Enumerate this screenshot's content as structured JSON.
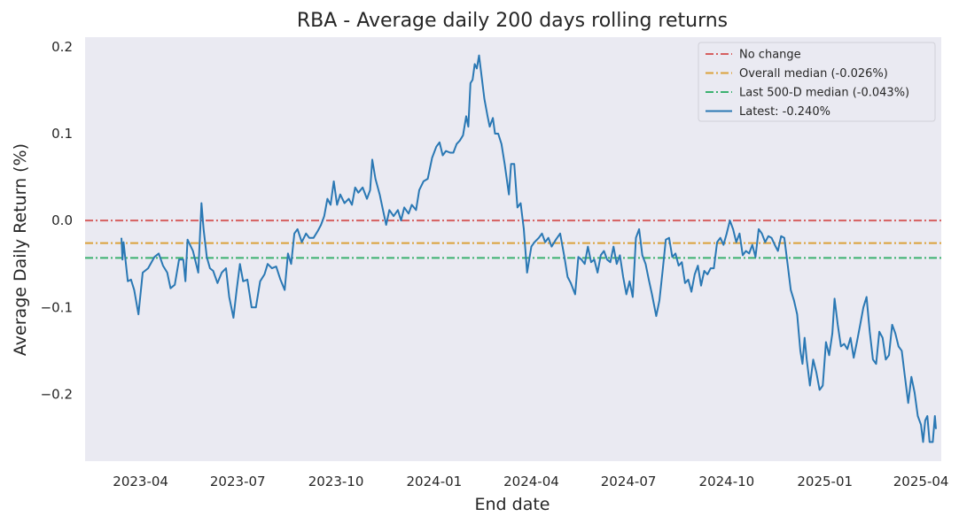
{
  "chart_data": {
    "type": "line",
    "title": "RBA - Average daily 200 days rolling returns",
    "xlabel": "End date",
    "ylabel": "Average Daily Return (%)",
    "xlim": [
      "2023-02-08",
      "2025-04-20"
    ],
    "ylim": [
      -0.277,
      0.211
    ],
    "grid": false,
    "legend_position": "top-right",
    "x_ticks": [
      "2023-04",
      "2023-07",
      "2023-10",
      "2024-01",
      "2024-04",
      "2024-07",
      "2024-10",
      "2025-01",
      "2025-04"
    ],
    "y_ticks": [
      0.2,
      0.1,
      0.0,
      -0.1,
      -0.2
    ],
    "y_tick_labels": [
      "0.2",
      "0.1",
      "0.0",
      "−0.1",
      "−0.2"
    ],
    "reference_lines": [
      {
        "name": "No change",
        "y": 0.0,
        "color": "#d65f5f",
        "style": "dashdot"
      },
      {
        "name": "Overall median (-0.026%)",
        "y": -0.026,
        "color": "#dba13a",
        "style": "dashdot"
      },
      {
        "name": "Last 500-D median (-0.043%)",
        "y": -0.043,
        "color": "#3bb16f",
        "style": "dashdot"
      }
    ],
    "series": [
      {
        "name": "Latest: -0.240%",
        "color": "#2a78b4",
        "points": [
          [
            "2023-03-14",
            -0.02
          ],
          [
            "2023-03-15",
            -0.045
          ],
          [
            "2023-03-16",
            -0.025
          ],
          [
            "2023-03-20",
            -0.07
          ],
          [
            "2023-03-23",
            -0.068
          ],
          [
            "2023-03-26",
            -0.08
          ],
          [
            "2023-03-30",
            -0.108
          ],
          [
            "2023-04-03",
            -0.06
          ],
          [
            "2023-04-08",
            -0.055
          ],
          [
            "2023-04-14",
            -0.042
          ],
          [
            "2023-04-18",
            -0.038
          ],
          [
            "2023-04-22",
            -0.052
          ],
          [
            "2023-04-26",
            -0.06
          ],
          [
            "2023-04-29",
            -0.078
          ],
          [
            "2023-05-03",
            -0.074
          ],
          [
            "2023-05-07",
            -0.045
          ],
          [
            "2023-05-11",
            -0.045
          ],
          [
            "2023-05-13",
            -0.07
          ],
          [
            "2023-05-15",
            -0.022
          ],
          [
            "2023-05-20",
            -0.035
          ],
          [
            "2023-05-25",
            -0.06
          ],
          [
            "2023-05-28",
            0.02
          ],
          [
            "2023-05-30",
            -0.01
          ],
          [
            "2023-06-02",
            -0.042
          ],
          [
            "2023-06-05",
            -0.055
          ],
          [
            "2023-06-08",
            -0.058
          ],
          [
            "2023-06-12",
            -0.072
          ],
          [
            "2023-06-16",
            -0.06
          ],
          [
            "2023-06-20",
            -0.055
          ],
          [
            "2023-06-23",
            -0.088
          ],
          [
            "2023-06-27",
            -0.112
          ],
          [
            "2023-06-30",
            -0.08
          ],
          [
            "2023-07-03",
            -0.05
          ],
          [
            "2023-07-06",
            -0.07
          ],
          [
            "2023-07-10",
            -0.068
          ],
          [
            "2023-07-14",
            -0.1
          ],
          [
            "2023-07-18",
            -0.1
          ],
          [
            "2023-07-22",
            -0.07
          ],
          [
            "2023-07-26",
            -0.062
          ],
          [
            "2023-07-29",
            -0.05
          ],
          [
            "2023-08-02",
            -0.055
          ],
          [
            "2023-08-06",
            -0.053
          ],
          [
            "2023-08-10",
            -0.068
          ],
          [
            "2023-08-14",
            -0.08
          ],
          [
            "2023-08-17",
            -0.038
          ],
          [
            "2023-08-20",
            -0.05
          ],
          [
            "2023-08-23",
            -0.015
          ],
          [
            "2023-08-26",
            -0.01
          ],
          [
            "2023-08-30",
            -0.025
          ],
          [
            "2023-09-03",
            -0.015
          ],
          [
            "2023-09-06",
            -0.02
          ],
          [
            "2023-09-10",
            -0.02
          ],
          [
            "2023-09-14",
            -0.012
          ],
          [
            "2023-09-17",
            -0.005
          ],
          [
            "2023-09-20",
            0.005
          ],
          [
            "2023-09-23",
            0.025
          ],
          [
            "2023-09-26",
            0.018
          ],
          [
            "2023-09-29",
            0.045
          ],
          [
            "2023-10-02",
            0.018
          ],
          [
            "2023-10-05",
            0.03
          ],
          [
            "2023-10-09",
            0.02
          ],
          [
            "2023-10-13",
            0.025
          ],
          [
            "2023-10-16",
            0.018
          ],
          [
            "2023-10-19",
            0.038
          ],
          [
            "2023-10-22",
            0.032
          ],
          [
            "2023-10-26",
            0.038
          ],
          [
            "2023-10-30",
            0.025
          ],
          [
            "2023-11-02",
            0.035
          ],
          [
            "2023-11-04",
            0.07
          ],
          [
            "2023-11-07",
            0.048
          ],
          [
            "2023-11-11",
            0.03
          ],
          [
            "2023-11-14",
            0.012
          ],
          [
            "2023-11-17",
            -0.005
          ],
          [
            "2023-11-20",
            0.012
          ],
          [
            "2023-11-24",
            0.005
          ],
          [
            "2023-11-28",
            0.012
          ],
          [
            "2023-12-01",
            0.0
          ],
          [
            "2023-12-04",
            0.015
          ],
          [
            "2023-12-08",
            0.008
          ],
          [
            "2023-12-11",
            0.018
          ],
          [
            "2023-12-15",
            0.012
          ],
          [
            "2023-12-18",
            0.035
          ],
          [
            "2023-12-22",
            0.045
          ],
          [
            "2023-12-26",
            0.048
          ],
          [
            "2023-12-30",
            0.072
          ],
          [
            "2024-01-03",
            0.085
          ],
          [
            "2024-01-06",
            0.09
          ],
          [
            "2024-01-09",
            0.075
          ],
          [
            "2024-01-12",
            0.08
          ],
          [
            "2024-01-16",
            0.078
          ],
          [
            "2024-01-19",
            0.078
          ],
          [
            "2024-01-22",
            0.088
          ],
          [
            "2024-01-25",
            0.092
          ],
          [
            "2024-01-28",
            0.098
          ],
          [
            "2024-01-31",
            0.12
          ],
          [
            "2024-02-02",
            0.108
          ],
          [
            "2024-02-04",
            0.158
          ],
          [
            "2024-02-06",
            0.162
          ],
          [
            "2024-02-08",
            0.18
          ],
          [
            "2024-02-10",
            0.175
          ],
          [
            "2024-02-12",
            0.19
          ],
          [
            "2024-02-15",
            0.16
          ],
          [
            "2024-02-17",
            0.14
          ],
          [
            "2024-02-20",
            0.12
          ],
          [
            "2024-02-22",
            0.108
          ],
          [
            "2024-02-25",
            0.118
          ],
          [
            "2024-02-27",
            0.1
          ],
          [
            "2024-03-01",
            0.1
          ],
          [
            "2024-03-04",
            0.088
          ],
          [
            "2024-03-07",
            0.065
          ],
          [
            "2024-03-11",
            0.03
          ],
          [
            "2024-03-13",
            0.065
          ],
          [
            "2024-03-16",
            0.065
          ],
          [
            "2024-03-19",
            0.015
          ],
          [
            "2024-03-22",
            0.02
          ],
          [
            "2024-03-25",
            -0.01
          ],
          [
            "2024-03-28",
            -0.06
          ],
          [
            "2024-04-01",
            -0.03
          ],
          [
            "2024-04-04",
            -0.025
          ],
          [
            "2024-04-08",
            -0.02
          ],
          [
            "2024-04-11",
            -0.015
          ],
          [
            "2024-04-14",
            -0.025
          ],
          [
            "2024-04-17",
            -0.02
          ],
          [
            "2024-04-20",
            -0.03
          ],
          [
            "2024-04-24",
            -0.022
          ],
          [
            "2024-04-28",
            -0.015
          ],
          [
            "2024-05-02",
            -0.042
          ],
          [
            "2024-05-05",
            -0.065
          ],
          [
            "2024-05-08",
            -0.072
          ],
          [
            "2024-05-12",
            -0.085
          ],
          [
            "2024-05-15",
            -0.042
          ],
          [
            "2024-05-18",
            -0.045
          ],
          [
            "2024-05-21",
            -0.05
          ],
          [
            "2024-05-24",
            -0.03
          ],
          [
            "2024-05-27",
            -0.048
          ],
          [
            "2024-05-30",
            -0.045
          ],
          [
            "2024-06-02",
            -0.06
          ],
          [
            "2024-06-05",
            -0.04
          ],
          [
            "2024-06-08",
            -0.035
          ],
          [
            "2024-06-11",
            -0.045
          ],
          [
            "2024-06-14",
            -0.048
          ],
          [
            "2024-06-17",
            -0.03
          ],
          [
            "2024-06-20",
            -0.05
          ],
          [
            "2024-06-23",
            -0.04
          ],
          [
            "2024-06-26",
            -0.065
          ],
          [
            "2024-06-29",
            -0.085
          ],
          [
            "2024-07-02",
            -0.07
          ],
          [
            "2024-07-05",
            -0.088
          ],
          [
            "2024-07-08",
            -0.02
          ],
          [
            "2024-07-11",
            -0.01
          ],
          [
            "2024-07-14",
            -0.04
          ],
          [
            "2024-07-17",
            -0.05
          ],
          [
            "2024-07-20",
            -0.068
          ],
          [
            "2024-07-23",
            -0.085
          ],
          [
            "2024-07-27",
            -0.11
          ],
          [
            "2024-07-30",
            -0.092
          ],
          [
            "2024-08-02",
            -0.058
          ],
          [
            "2024-08-05",
            -0.022
          ],
          [
            "2024-08-08",
            -0.02
          ],
          [
            "2024-08-11",
            -0.042
          ],
          [
            "2024-08-14",
            -0.038
          ],
          [
            "2024-08-17",
            -0.052
          ],
          [
            "2024-08-20",
            -0.048
          ],
          [
            "2024-08-23",
            -0.072
          ],
          [
            "2024-08-26",
            -0.068
          ],
          [
            "2024-08-29",
            -0.082
          ],
          [
            "2024-09-01",
            -0.062
          ],
          [
            "2024-09-04",
            -0.052
          ],
          [
            "2024-09-07",
            -0.075
          ],
          [
            "2024-09-10",
            -0.058
          ],
          [
            "2024-09-13",
            -0.062
          ],
          [
            "2024-09-16",
            -0.055
          ],
          [
            "2024-09-19",
            -0.055
          ],
          [
            "2024-09-22",
            -0.025
          ],
          [
            "2024-09-25",
            -0.02
          ],
          [
            "2024-09-28",
            -0.028
          ],
          [
            "2024-10-01",
            -0.015
          ],
          [
            "2024-10-04",
            0.0
          ],
          [
            "2024-10-07",
            -0.01
          ],
          [
            "2024-10-10",
            -0.025
          ],
          [
            "2024-10-13",
            -0.015
          ],
          [
            "2024-10-16",
            -0.04
          ],
          [
            "2024-10-19",
            -0.035
          ],
          [
            "2024-10-22",
            -0.038
          ],
          [
            "2024-10-25",
            -0.028
          ],
          [
            "2024-10-28",
            -0.042
          ],
          [
            "2024-10-31",
            -0.01
          ],
          [
            "2024-11-03",
            -0.015
          ],
          [
            "2024-11-06",
            -0.025
          ],
          [
            "2024-11-09",
            -0.018
          ],
          [
            "2024-11-12",
            -0.02
          ],
          [
            "2024-11-15",
            -0.028
          ],
          [
            "2024-11-18",
            -0.035
          ],
          [
            "2024-11-21",
            -0.018
          ],
          [
            "2024-11-24",
            -0.02
          ],
          [
            "2024-11-27",
            -0.05
          ],
          [
            "2024-11-30",
            -0.08
          ],
          [
            "2024-12-03",
            -0.092
          ],
          [
            "2024-12-06",
            -0.108
          ],
          [
            "2024-12-09",
            -0.15
          ],
          [
            "2024-12-11",
            -0.165
          ],
          [
            "2024-12-13",
            -0.135
          ],
          [
            "2024-12-15",
            -0.16
          ],
          [
            "2024-12-18",
            -0.19
          ],
          [
            "2024-12-21",
            -0.16
          ],
          [
            "2024-12-24",
            -0.175
          ],
          [
            "2024-12-27",
            -0.195
          ],
          [
            "2024-12-30",
            -0.19
          ],
          [
            "2025-01-02",
            -0.14
          ],
          [
            "2025-01-05",
            -0.155
          ],
          [
            "2025-01-08",
            -0.13
          ],
          [
            "2025-01-10",
            -0.09
          ],
          [
            "2025-01-13",
            -0.12
          ],
          [
            "2025-01-16",
            -0.145
          ],
          [
            "2025-01-19",
            -0.142
          ],
          [
            "2025-01-22",
            -0.148
          ],
          [
            "2025-01-25",
            -0.135
          ],
          [
            "2025-01-28",
            -0.158
          ],
          [
            "2025-01-31",
            -0.14
          ],
          [
            "2025-02-03",
            -0.12
          ],
          [
            "2025-02-06",
            -0.1
          ],
          [
            "2025-02-09",
            -0.088
          ],
          [
            "2025-02-12",
            -0.128
          ],
          [
            "2025-02-15",
            -0.16
          ],
          [
            "2025-02-18",
            -0.165
          ],
          [
            "2025-02-21",
            -0.128
          ],
          [
            "2025-02-24",
            -0.135
          ],
          [
            "2025-02-27",
            -0.16
          ],
          [
            "2025-03-02",
            -0.155
          ],
          [
            "2025-03-05",
            -0.12
          ],
          [
            "2025-03-08",
            -0.13
          ],
          [
            "2025-03-11",
            -0.145
          ],
          [
            "2025-03-14",
            -0.15
          ],
          [
            "2025-03-17",
            -0.18
          ],
          [
            "2025-03-20",
            -0.21
          ],
          [
            "2025-03-23",
            -0.18
          ],
          [
            "2025-03-26",
            -0.198
          ],
          [
            "2025-03-29",
            -0.225
          ],
          [
            "2025-04-01",
            -0.235
          ],
          [
            "2025-04-03",
            -0.255
          ],
          [
            "2025-04-05",
            -0.23
          ],
          [
            "2025-04-07",
            -0.225
          ],
          [
            "2025-04-09",
            -0.255
          ],
          [
            "2025-04-12",
            -0.255
          ],
          [
            "2025-04-14",
            -0.225
          ],
          [
            "2025-04-15",
            -0.24
          ]
        ]
      }
    ]
  }
}
